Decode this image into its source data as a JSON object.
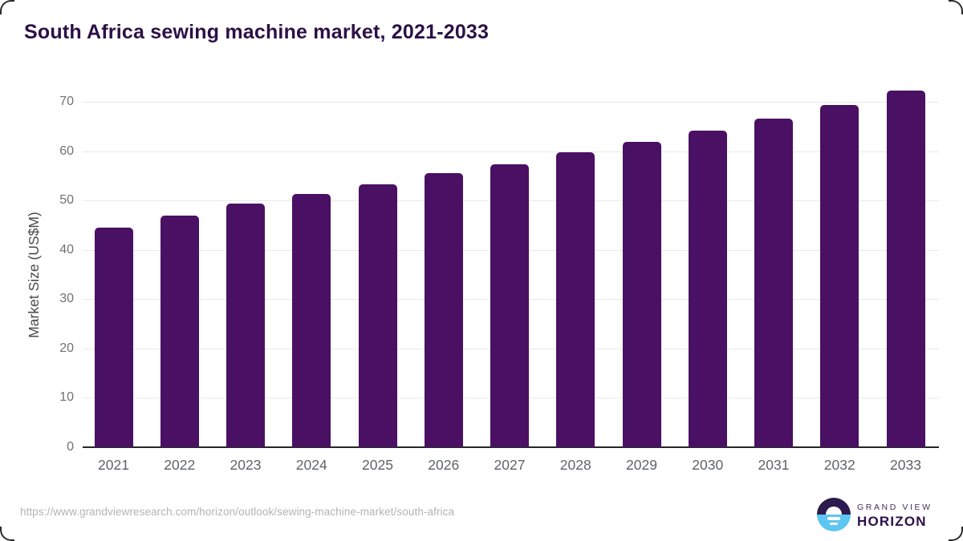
{
  "page": {
    "source_url": "https://www.grandviewresearch.com/horizon/outlook/sewing-machine-market/south-africa"
  },
  "logo": {
    "line1": "GRAND VIEW",
    "line2": "HORIZON",
    "icon": "horizon-sun-icon",
    "colors": {
      "dark": "#2d1b4e",
      "blue": "#5ec6f2"
    }
  },
  "chart_data": {
    "type": "bar",
    "title": "South Africa sewing machine market, 2021-2033",
    "categories": [
      "2021",
      "2022",
      "2023",
      "2024",
      "2025",
      "2026",
      "2027",
      "2028",
      "2029",
      "2030",
      "2031",
      "2032",
      "2033"
    ],
    "values": [
      44.5,
      47.0,
      49.4,
      51.4,
      53.2,
      55.5,
      57.4,
      59.8,
      61.9,
      64.1,
      66.6,
      69.4,
      72.3
    ],
    "xlabel": "",
    "ylabel": "Market Size (US$M)",
    "ylim": [
      0,
      75
    ],
    "yticks": [
      0,
      10,
      20,
      30,
      40,
      50,
      60,
      70
    ],
    "bar_color": "#4a1063",
    "grid": "horizontal-only",
    "legend": "none",
    "colors": {
      "title": "#2c1047",
      "gridline": "#e9e9e9",
      "axis_line": "#262626",
      "tick_label": "#717171",
      "x_tick_label": "#5f6368"
    }
  }
}
